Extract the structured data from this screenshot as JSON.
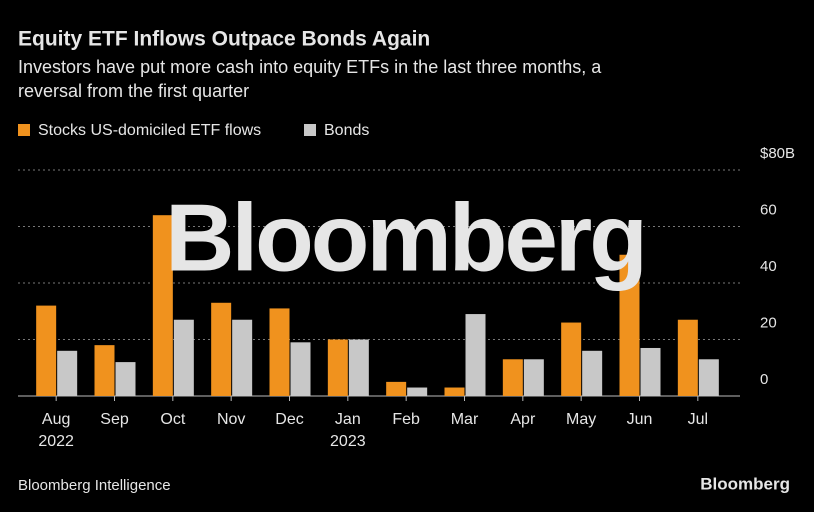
{
  "chart_data": {
    "type": "bar",
    "title": "Equity ETF Inflows Outpace Bonds Again",
    "subtitle_lines": [
      "Investors have put more cash into equity ETFs in the last three months, a",
      "reversal from the first quarter"
    ],
    "categories": [
      "Aug",
      "Sep",
      "Oct",
      "Nov",
      "Dec",
      "Jan",
      "Feb",
      "Mar",
      "Apr",
      "May",
      "Jun",
      "Jul"
    ],
    "year_labels": [
      "2022",
      null,
      null,
      null,
      null,
      "2023",
      null,
      null,
      null,
      null,
      null,
      null
    ],
    "series": [
      {
        "name": "Stocks US-domiciled ETF flows",
        "color": "#f0921e",
        "values": [
          32,
          18,
          64,
          33,
          31,
          20,
          5,
          3,
          13,
          26,
          50,
          27
        ]
      },
      {
        "name": "Bonds",
        "color": "#c8c8c8",
        "values": [
          16,
          12,
          27,
          27,
          19,
          20,
          3,
          29,
          13,
          16,
          17,
          13
        ]
      }
    ],
    "ylim": [
      0,
      80
    ],
    "yticks": [
      0,
      20,
      40,
      60,
      {
        "value": 80,
        "label": "$80B"
      }
    ],
    "grid": true,
    "watermark": "Bloomberg",
    "source": "Bloomberg Intelligence",
    "logo": "Bloomberg"
  }
}
